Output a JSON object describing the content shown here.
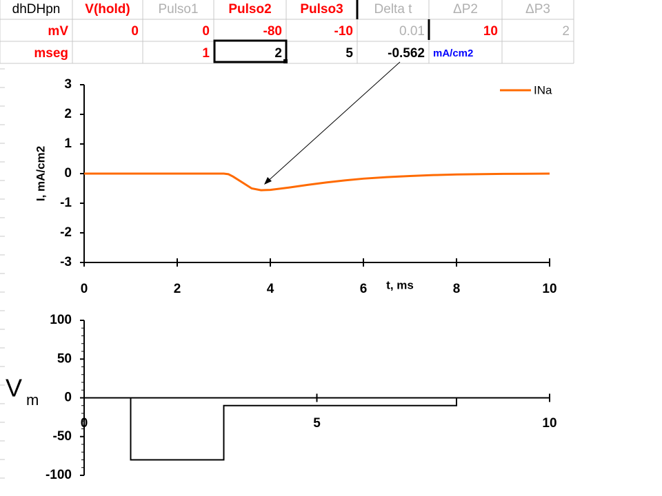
{
  "table": {
    "rows": [
      [
        "dhDHpn",
        "V(hold)",
        "Pulso1",
        "Pulso2",
        "Pulso3",
        "Delta t",
        "ΔP2",
        "ΔP3"
      ],
      [
        "mV",
        0,
        0,
        -80,
        -10,
        0.01,
        10,
        2
      ],
      [
        "mseg",
        null,
        1,
        2,
        5,
        -0.562,
        "mA/cm2",
        null
      ]
    ]
  },
  "chart_data": [
    {
      "type": "line",
      "ylabel": "I, mA/cm2",
      "xlabel": "t, ms",
      "x": [
        0,
        1,
        2,
        3,
        3.1,
        3.2,
        3.4,
        3.6,
        3.8,
        4,
        4.4,
        4.8,
        5.2,
        5.6,
        6,
        6.5,
        7,
        7.5,
        8,
        9,
        10
      ],
      "series": [
        {
          "name": "INa",
          "color": "#ff6a00",
          "values": [
            0,
            0,
            0,
            0,
            -0.02,
            -0.1,
            -0.3,
            -0.5,
            -0.56,
            -0.55,
            -0.47,
            -0.38,
            -0.3,
            -0.23,
            -0.17,
            -0.12,
            -0.08,
            -0.05,
            -0.03,
            -0.01,
            0
          ]
        }
      ],
      "xlim": [
        0,
        10
      ],
      "xticks": [
        0,
        2,
        4,
        6,
        8,
        10
      ],
      "ylim": [
        -3,
        3
      ],
      "yticks": [
        -3,
        -2,
        -1,
        0,
        1,
        2,
        3
      ],
      "legend": "top-right"
    },
    {
      "type": "line",
      "ylabel": "V",
      "ylabel_sub": "m",
      "x": [
        0,
        1,
        1,
        3,
        3,
        8,
        8,
        10
      ],
      "values": [
        0,
        0,
        -80,
        -80,
        -10,
        -10,
        0,
        0
      ],
      "color": "#000000",
      "xlim": [
        0,
        10
      ],
      "xticks": [
        0,
        5,
        10
      ],
      "ylim": [
        -100,
        100
      ],
      "yticks": [
        -100,
        -50,
        0,
        50,
        100
      ]
    }
  ]
}
